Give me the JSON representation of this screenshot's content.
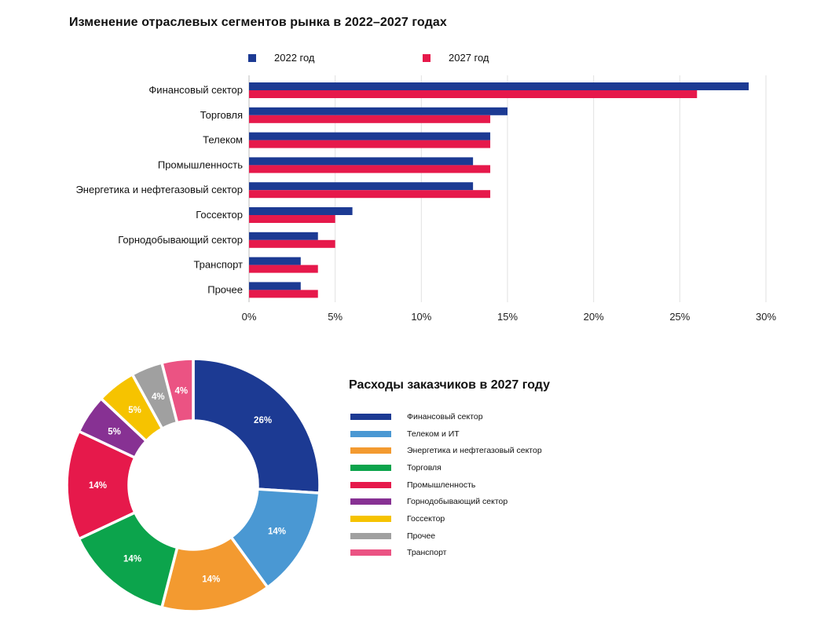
{
  "chart_data": [
    {
      "type": "bar",
      "orientation": "horizontal",
      "title": "Изменение отраслевых сегментов рынка в 2022–2027 годах",
      "categories": [
        "Финансовый сектор",
        "Торговля",
        "Телеком",
        "Промышленность",
        "Энергетика и нефтегазовый сектор",
        "Госсектор",
        "Горнодобывающий сектор",
        "Транспорт",
        "Прочее"
      ],
      "series": [
        {
          "name": "2022 год",
          "color": "#1c3a93",
          "values": [
            29,
            15,
            14,
            13,
            13,
            6,
            4,
            3,
            3
          ]
        },
        {
          "name": "2027 год",
          "color": "#e6194b",
          "values": [
            26,
            14,
            14,
            14,
            14,
            5,
            5,
            4,
            4
          ]
        }
      ],
      "xlim": [
        0,
        30
      ],
      "xticks": [
        "0%",
        "5%",
        "10%",
        "15%",
        "20%",
        "25%",
        "30%"
      ],
      "grid": true,
      "legend": "top"
    },
    {
      "type": "pie",
      "donut": true,
      "title": "Расходы заказчиков в 2027 году",
      "slices": [
        {
          "label": "Финансовый сектор",
          "value": 26,
          "text": "26%",
          "color": "#1c3a93"
        },
        {
          "label": "Телеком и ИТ",
          "value": 14,
          "text": "14%",
          "color": "#4a98d3"
        },
        {
          "label": "Энергетика и нефтегазовый сектор",
          "value": 14,
          "text": "14%",
          "color": "#f39a30"
        },
        {
          "label": "Торговля",
          "value": 14,
          "text": "14%",
          "color": "#0ca44c"
        },
        {
          "label": "Промышленность",
          "value": 14,
          "text": "14%",
          "color": "#e6194b"
        },
        {
          "label": "Горнодобывающий сектор",
          "value": 5,
          "text": "5%",
          "color": "#873193"
        },
        {
          "label": "Госсектор",
          "value": 5,
          "text": "5%",
          "color": "#f6c300"
        },
        {
          "label": "Прочее",
          "value": 4,
          "text": "4%",
          "color": "#a0a0a0"
        },
        {
          "label": "Транспорт",
          "value": 4,
          "text": "4%",
          "color": "#eb5383"
        }
      ],
      "legend": "right"
    }
  ]
}
